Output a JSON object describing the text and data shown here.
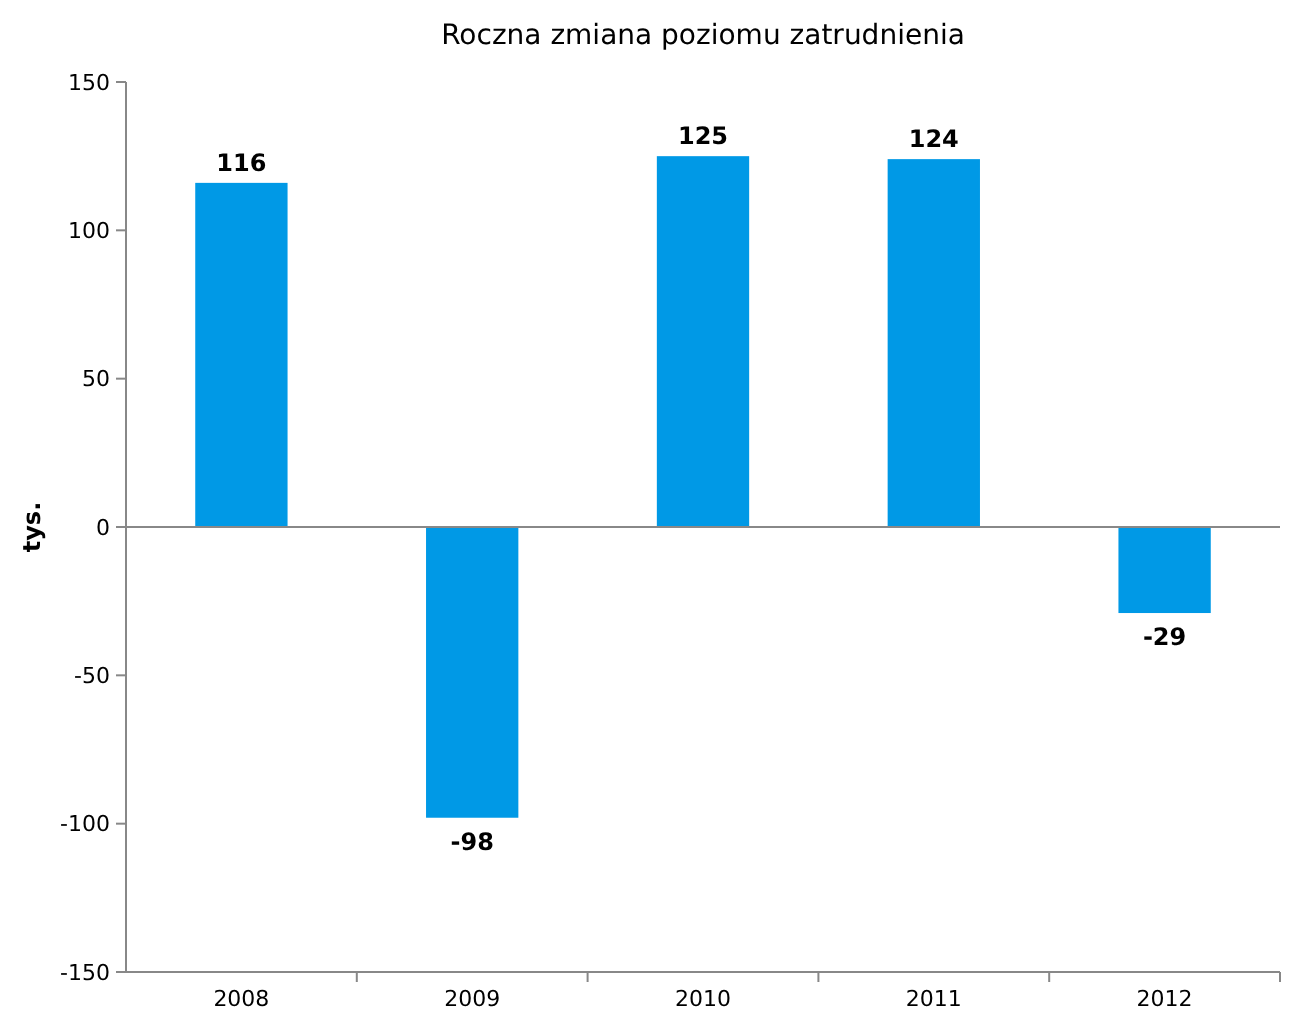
{
  "chart_data": {
    "type": "bar",
    "title": "Roczna zmiana poziomu zatrudnienia",
    "ylabel": "tys.",
    "categories": [
      "2008",
      "2009",
      "2010",
      "2011",
      "2012"
    ],
    "values": [
      116,
      -98,
      125,
      124,
      -29
    ],
    "color": "#0099e6",
    "ylim": [
      -150,
      150
    ],
    "yticks": [
      -150,
      -100,
      -50,
      0,
      50,
      100,
      150
    ],
    "data_labels": true
  }
}
